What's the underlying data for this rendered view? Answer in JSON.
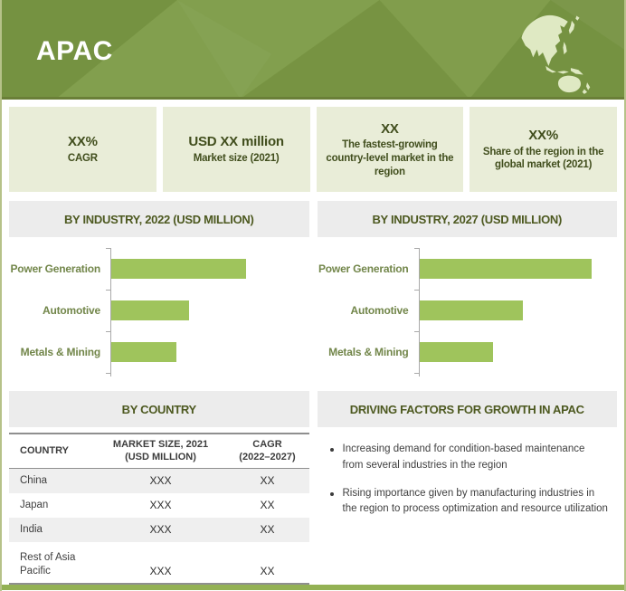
{
  "header": {
    "title": "APAC"
  },
  "stats": [
    {
      "value": "XX%",
      "label": "CAGR"
    },
    {
      "value": "USD XX million",
      "label": "Market size (2021)"
    },
    {
      "value": "XX",
      "label": "The fastest-growing country-level market in the region"
    },
    {
      "value": "XX%",
      "label": "Share of the region in the global market (2021)"
    }
  ],
  "chart_data": [
    {
      "type": "bar",
      "orientation": "horizontal",
      "title": "BY INDUSTRY, 2022 (USD MILLION)",
      "categories": [
        "Power Generation",
        "Automotive",
        "Metals & Mining"
      ],
      "values": [
        68,
        39,
        33
      ],
      "value_note": "bars unlabeled in source (XX placeholders); values are percent of axis length estimated from pixels",
      "xlim": [
        0,
        100
      ],
      "grid": false,
      "legend": false
    },
    {
      "type": "bar",
      "orientation": "horizontal",
      "title": "BY INDUSTRY, 2027 (USD MILLION)",
      "categories": [
        "Power Generation",
        "Automotive",
        "Metals & Mining"
      ],
      "values": [
        87,
        52,
        37
      ],
      "value_note": "bars unlabeled in source (XX placeholders); values are percent of axis length estimated from pixels",
      "xlim": [
        0,
        100
      ],
      "grid": false,
      "legend": false
    }
  ],
  "country_table": {
    "title": "BY COUNTRY",
    "columns": [
      {
        "line1": "COUNTRY",
        "line2": ""
      },
      {
        "line1": "MARKET SIZE, 2021",
        "line2": "(USD MILLION)"
      },
      {
        "line1": "CAGR",
        "line2": "(2022–2027)"
      }
    ],
    "rows": [
      {
        "country": "China",
        "market_size": "XXX",
        "cagr": "XX"
      },
      {
        "country": "Japan",
        "market_size": "XXX",
        "cagr": "XX"
      },
      {
        "country": "India",
        "market_size": "XXX",
        "cagr": "XX"
      },
      {
        "country": "Rest of Asia Pacific",
        "market_size": "XXX",
        "cagr": "XX"
      }
    ]
  },
  "driving_factors": {
    "title": "DRIVING FACTORS FOR GROWTH IN APAC",
    "bullets": [
      "Increasing demand for condition-based maintenance from several industries in the region",
      "Rising importance given by manufacturing industries in the region to process optimization and resource utilization"
    ]
  },
  "colors": {
    "banner_green": "#7c9a45",
    "map_fill": "#dfe9c3",
    "stat_box_bg": "#e9edd8",
    "dark_olive_text": "#414e1d",
    "section_header_bg": "#ececec",
    "bar_green": "#9fc45c",
    "chart_label_olive": "#72864a",
    "table_stripe": "#efefef",
    "table_border": "#8f8f8f",
    "body_text": "#3f3f3f",
    "bottom_band": "#93b154",
    "frame_border": "#b6c289"
  }
}
